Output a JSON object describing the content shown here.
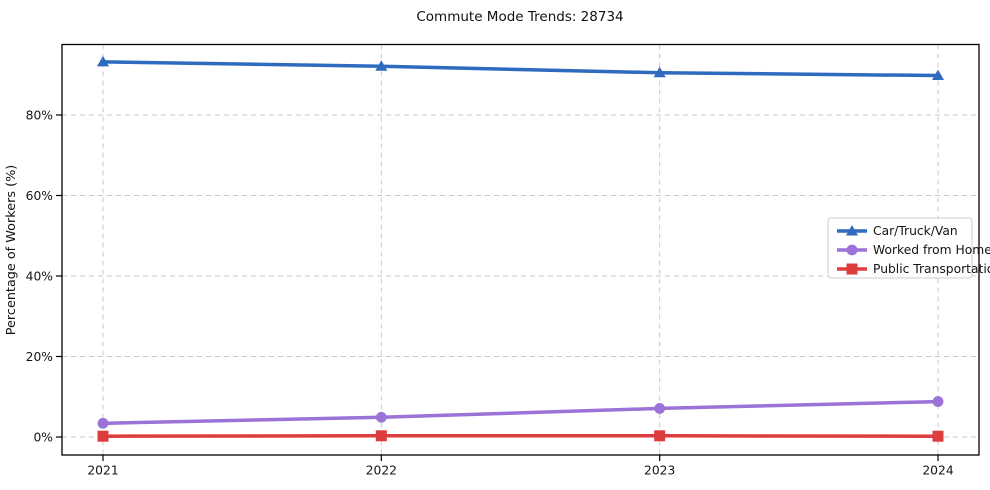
{
  "figure": {
    "title": "Commute Mode Trends: 28734"
  },
  "chart_data": {
    "type": "line",
    "title": "Commute Mode Trends: 28734",
    "xlabel": "",
    "ylabel": "Percentage of Workers (%)",
    "x": [
      "2021",
      "2022",
      "2023",
      "2024"
    ],
    "series": [
      {
        "name": "Car/Truck/Van",
        "marker": "triangle",
        "color": "#2e6abd",
        "values": [
          93.2,
          92.1,
          90.5,
          89.8
        ]
      },
      {
        "name": "Worked from Home",
        "marker": "circle",
        "color": "#9b72d6",
        "values": [
          3.4,
          4.9,
          7.1,
          8.8
        ]
      },
      {
        "name": "Public Transportation",
        "marker": "square",
        "color": "#de3d3d",
        "values": [
          0.2,
          0.3,
          0.3,
          0.2
        ]
      }
    ],
    "yticks": [
      0,
      20,
      40,
      60,
      80
    ],
    "ytick_labels": [
      "0%",
      "20%",
      "40%",
      "60%",
      "80%"
    ],
    "ylim": [
      -4.5,
      97.6
    ],
    "grid": true,
    "grid_style": "dashed",
    "legend_position": "center-right",
    "background": "#ffffff"
  }
}
